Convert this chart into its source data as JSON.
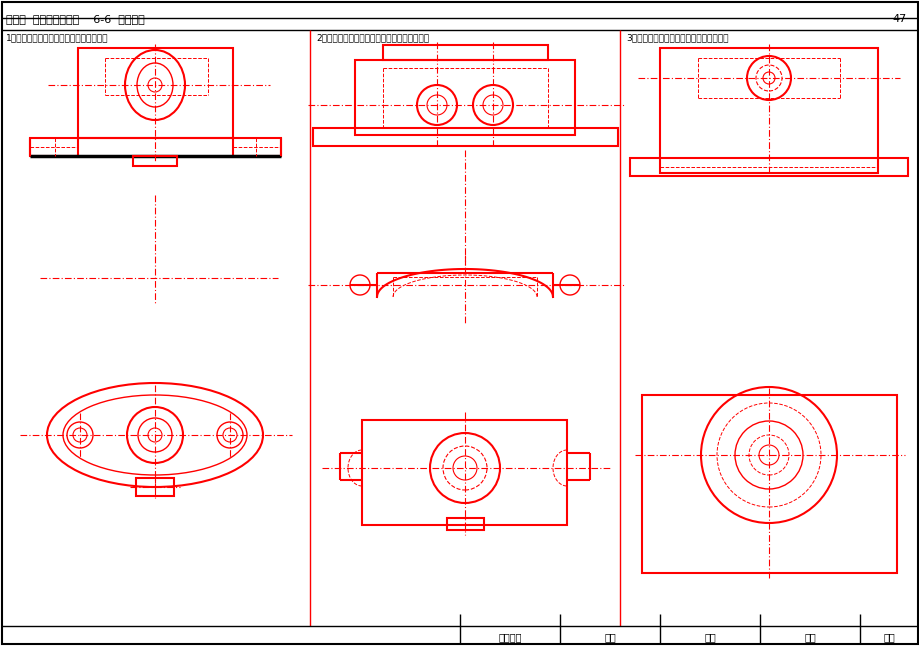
{
  "title": "第六章  机件的表达方法    6-6  半剖视图",
  "page_number": "47",
  "problem1": "1．在指定位置将主视图改画成半剖视图。",
  "problem2": "2．在指定位置将主、俯视图改画成半剖视图。",
  "problem3": "3．在指定位置将主视图改画成半剖视图。",
  "footer_labels": [
    "专业班级",
    "学号",
    "姓名",
    "审核",
    "成绩"
  ],
  "red": "#FF0000",
  "black": "#000000",
  "bg": "#FFFFFF"
}
